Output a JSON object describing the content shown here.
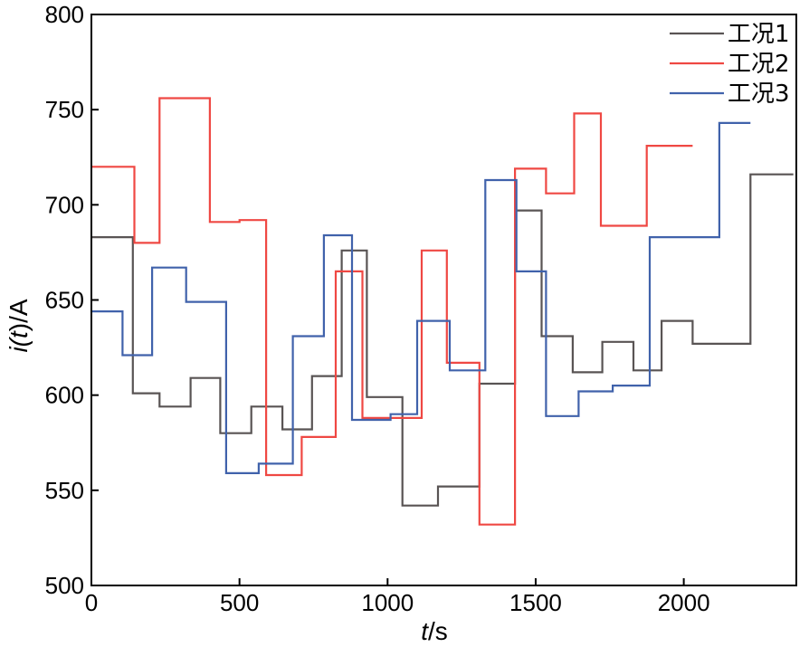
{
  "chart_data": {
    "type": "line",
    "title": "",
    "xlabel": {
      "var": "t",
      "unit": "/s"
    },
    "ylabel": {
      "prefix": "i(",
      "var": "t",
      "suffix": ")/A"
    },
    "xlim": [
      0,
      2380
    ],
    "ylim": [
      500,
      800
    ],
    "xticks": [
      0,
      500,
      1000,
      1500,
      2000
    ],
    "xtick_labels": [
      "0",
      "500",
      "1000",
      "1500",
      "2000"
    ],
    "yticks": [
      500,
      550,
      600,
      650,
      700,
      750,
      800
    ],
    "ytick_labels": [
      "500",
      "550",
      "600",
      "650",
      "700",
      "750",
      "800"
    ],
    "legend_position": "top-right",
    "series": [
      {
        "name": "工况1",
        "color": "#595454",
        "x": [
          0,
          140,
          140,
          230,
          230,
          335,
          335,
          435,
          435,
          540,
          540,
          645,
          645,
          745,
          745,
          845,
          845,
          930,
          930,
          1050,
          1050,
          1170,
          1170,
          1310,
          1310,
          1430,
          1430,
          1520,
          1520,
          1625,
          1625,
          1725,
          1725,
          1830,
          1830,
          1925,
          1925,
          2030,
          2030,
          2130,
          2130,
          2225,
          2225,
          2370
        ],
        "y": [
          683,
          683,
          601,
          601,
          594,
          594,
          609,
          609,
          580,
          580,
          594,
          594,
          582,
          582,
          610,
          610,
          676,
          676,
          599,
          599,
          542,
          542,
          552,
          552,
          606,
          606,
          697,
          697,
          631,
          631,
          612,
          612,
          628,
          628,
          613,
          613,
          639,
          639,
          627,
          627,
          627,
          627,
          716,
          716
        ]
      },
      {
        "name": "工况2",
        "color": "#ef4843",
        "x": [
          0,
          145,
          145,
          230,
          230,
          400,
          400,
          500,
          500,
          590,
          590,
          710,
          710,
          825,
          825,
          915,
          915,
          1115,
          1115,
          1200,
          1200,
          1310,
          1310,
          1430,
          1430,
          1535,
          1535,
          1630,
          1630,
          1720,
          1720,
          1875,
          1875,
          1945,
          1945,
          2030
        ],
        "y": [
          720,
          720,
          680,
          680,
          756,
          756,
          691,
          691,
          692,
          692,
          558,
          558,
          578,
          578,
          665,
          665,
          588,
          588,
          676,
          676,
          617,
          617,
          532,
          532,
          719,
          719,
          706,
          706,
          748,
          748,
          689,
          689,
          731,
          731,
          731,
          731
        ]
      },
      {
        "name": "工况3",
        "color": "#4062ab",
        "x": [
          0,
          105,
          105,
          205,
          205,
          320,
          320,
          455,
          455,
          565,
          565,
          680,
          680,
          785,
          785,
          880,
          880,
          1010,
          1010,
          1100,
          1100,
          1210,
          1210,
          1330,
          1330,
          1435,
          1435,
          1535,
          1535,
          1645,
          1645,
          1760,
          1760,
          1885,
          1885,
          2035,
          2035,
          2120,
          2120,
          2225
        ],
        "y": [
          644,
          644,
          621,
          621,
          667,
          667,
          649,
          649,
          559,
          559,
          564,
          564,
          631,
          631,
          684,
          684,
          587,
          587,
          590,
          590,
          639,
          639,
          613,
          613,
          713,
          713,
          665,
          665,
          589,
          589,
          602,
          602,
          605,
          605,
          683,
          683,
          683,
          683,
          743,
          743
        ]
      }
    ]
  }
}
